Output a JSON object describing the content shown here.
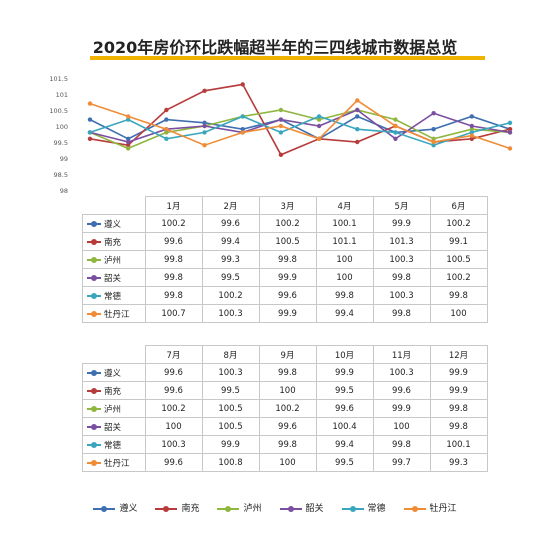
{
  "chart_data": {
    "type": "line",
    "title": "2020年房价环比跌幅超半年的三四线城市数据总览",
    "categories": [
      "1月",
      "2月",
      "3月",
      "4月",
      "5月",
      "6月",
      "7月",
      "8月",
      "9月",
      "10月",
      "11月",
      "12月"
    ],
    "ylim": [
      98,
      101.5
    ],
    "yticks": [
      "101.5",
      "101",
      "100.5",
      "100",
      "99.5",
      "99",
      "98.5",
      "98"
    ],
    "ytick_values": [
      101.5,
      101,
      100.5,
      100,
      99.5,
      99,
      98.5,
      98
    ],
    "series": [
      {
        "name": "遵义",
        "color": "#3e6fb0",
        "values": [
          100.2,
          99.6,
          100.2,
          100.1,
          99.9,
          100.2,
          99.6,
          100.3,
          99.8,
          99.9,
          100.3,
          99.9
        ],
        "labels": [
          "100.2",
          "99.6",
          "100.2",
          "100.1",
          "99.9",
          "100.2",
          "99.6",
          "100.3",
          "99.8",
          "99.9",
          "100.3",
          "99.9"
        ]
      },
      {
        "name": "南充",
        "color": "#b83a3a",
        "values": [
          99.6,
          99.4,
          100.5,
          101.1,
          101.3,
          99.1,
          99.6,
          99.5,
          100,
          99.5,
          99.6,
          99.9
        ],
        "labels": [
          "99.6",
          "99.4",
          "100.5",
          "101.1",
          "101.3",
          "99.1",
          "99.6",
          "99.5",
          "100",
          "99.5",
          "99.6",
          "99.9"
        ]
      },
      {
        "name": "泸州",
        "color": "#8fb63e",
        "values": [
          99.8,
          99.3,
          99.8,
          100,
          100.3,
          100.5,
          100.2,
          100.5,
          100.2,
          99.6,
          99.9,
          99.8
        ],
        "labels": [
          "99.8",
          "99.3",
          "99.8",
          "100",
          "100.3",
          "100.5",
          "100.2",
          "100.5",
          "100.2",
          "99.6",
          "99.9",
          "99.8"
        ]
      },
      {
        "name": "韶关",
        "color": "#7b4fa0",
        "values": [
          99.8,
          99.5,
          99.9,
          100,
          99.8,
          100.2,
          100,
          100.5,
          99.6,
          100.4,
          100,
          99.8
        ],
        "labels": [
          "99.8",
          "99.5",
          "99.9",
          "100",
          "99.8",
          "100.2",
          "100",
          "100.5",
          "99.6",
          "100.4",
          "100",
          "99.8"
        ]
      },
      {
        "name": "常德",
        "color": "#3aa6bd",
        "values": [
          99.8,
          100.2,
          99.6,
          99.8,
          100.3,
          99.8,
          100.3,
          99.9,
          99.8,
          99.4,
          99.8,
          100.1
        ],
        "labels": [
          "99.8",
          "100.2",
          "99.6",
          "99.8",
          "100.3",
          "99.8",
          "100.3",
          "99.9",
          "99.8",
          "99.4",
          "99.8",
          "100.1"
        ]
      },
      {
        "name": "牡丹江",
        "color": "#f08c36",
        "values": [
          100.7,
          100.3,
          99.9,
          99.4,
          99.8,
          100,
          99.6,
          100.8,
          100,
          99.5,
          99.7,
          99.3
        ],
        "labels": [
          "100.7",
          "100.3",
          "99.9",
          "99.4",
          "99.8",
          "100",
          "99.6",
          "100.8",
          "100",
          "99.5",
          "99.7",
          "99.3"
        ]
      }
    ]
  }
}
